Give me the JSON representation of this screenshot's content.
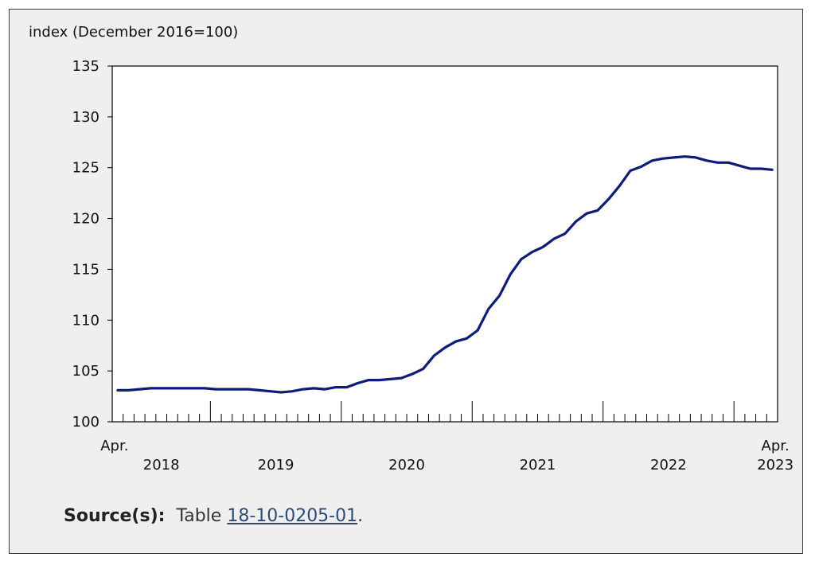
{
  "chart_data": {
    "type": "line",
    "ylabel": "index (December 2016=100)",
    "ylim": [
      100,
      135
    ],
    "yticks": [
      100,
      105,
      110,
      115,
      120,
      125,
      130,
      135
    ],
    "x_start": "2018-04",
    "x_end": "2023-04",
    "x_range_labels": {
      "start_month": "Apr.",
      "end_month": "Apr."
    },
    "year_labels": [
      "2018",
      "2019",
      "2020",
      "2021",
      "2022",
      "2023"
    ],
    "line_color": "#0d1b7a",
    "grid": false,
    "series": [
      {
        "name": "",
        "x": [
          "2018-04",
          "2018-05",
          "2018-06",
          "2018-07",
          "2018-08",
          "2018-09",
          "2018-10",
          "2018-11",
          "2018-12",
          "2019-01",
          "2019-02",
          "2019-03",
          "2019-04",
          "2019-05",
          "2019-06",
          "2019-07",
          "2019-08",
          "2019-09",
          "2019-10",
          "2019-11",
          "2019-12",
          "2020-01",
          "2020-02",
          "2020-03",
          "2020-04",
          "2020-05",
          "2020-06",
          "2020-07",
          "2020-08",
          "2020-09",
          "2020-10",
          "2020-11",
          "2020-12",
          "2021-01",
          "2021-02",
          "2021-03",
          "2021-04",
          "2021-05",
          "2021-06",
          "2021-07",
          "2021-08",
          "2021-09",
          "2021-10",
          "2021-11",
          "2021-12",
          "2022-01",
          "2022-02",
          "2022-03",
          "2022-04",
          "2022-05",
          "2022-06",
          "2022-07",
          "2022-08",
          "2022-09",
          "2022-10",
          "2022-11",
          "2022-12",
          "2023-01",
          "2023-02",
          "2023-03",
          "2023-04"
        ],
        "values": [
          103.1,
          103.1,
          103.2,
          103.3,
          103.3,
          103.3,
          103.3,
          103.3,
          103.3,
          103.2,
          103.2,
          103.2,
          103.2,
          103.1,
          103.0,
          102.9,
          103.0,
          103.2,
          103.3,
          103.2,
          103.4,
          103.4,
          103.8,
          104.1,
          104.1,
          104.2,
          104.3,
          104.7,
          105.2,
          106.5,
          107.3,
          107.9,
          108.2,
          109.0,
          111.1,
          112.4,
          114.5,
          116.0,
          116.7,
          117.2,
          118.0,
          118.5,
          119.7,
          120.5,
          120.8,
          121.9,
          123.2,
          124.7,
          125.1,
          125.7,
          125.9,
          126.0,
          126.1,
          126.0,
          125.7,
          125.5,
          125.5,
          125.2,
          124.9,
          124.9,
          124.8
        ]
      }
    ]
  },
  "source": {
    "label": "Source(s):",
    "text_prefix": "Table",
    "link_text": "18-10-0205-01",
    "suffix": "."
  }
}
